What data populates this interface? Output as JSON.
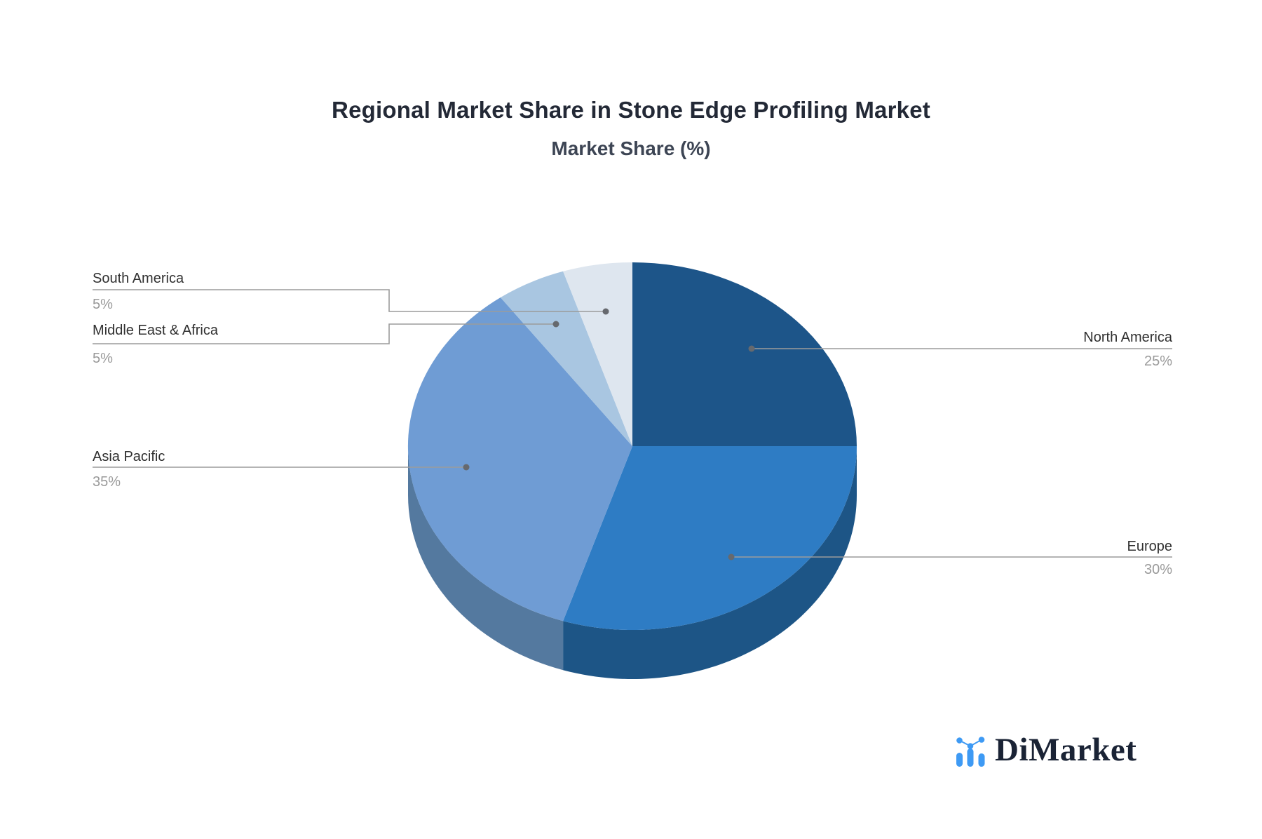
{
  "header": {
    "title": "Regional Market Share in Stone Edge Profiling Market",
    "subtitle": "Market Share (%)"
  },
  "chart_data": {
    "type": "pie",
    "title": "Regional Market Share in Stone Edge Profiling Market",
    "subtitle": "Market Share (%)",
    "unit": "%",
    "style": "3d",
    "direction": "clockwise",
    "start_angle_deg": 0,
    "legend_position": "none",
    "connector_color": "#9b9b9b",
    "dot_color": "#66696e",
    "slices": [
      {
        "label": "North America",
        "value": 25,
        "display": "25%",
        "color": "#1d5589",
        "side_color": "#173f66"
      },
      {
        "label": "Europe",
        "value": 30,
        "display": "30%",
        "color": "#2e7cc4",
        "side_color": "#1d5586"
      },
      {
        "label": "Asia Pacific",
        "value": 35,
        "display": "35%",
        "color": "#6f9cd4",
        "side_color": "#54799f"
      },
      {
        "label": "Middle East & Africa",
        "value": 5,
        "display": "5%",
        "color": "#a9c6e1",
        "side_color": "#7e94a8"
      },
      {
        "label": "South America",
        "value": 5,
        "display": "5%",
        "color": "#dee6ef",
        "side_color": "#a6adb9"
      }
    ]
  },
  "branding": {
    "logo_text": "DiMarket"
  }
}
